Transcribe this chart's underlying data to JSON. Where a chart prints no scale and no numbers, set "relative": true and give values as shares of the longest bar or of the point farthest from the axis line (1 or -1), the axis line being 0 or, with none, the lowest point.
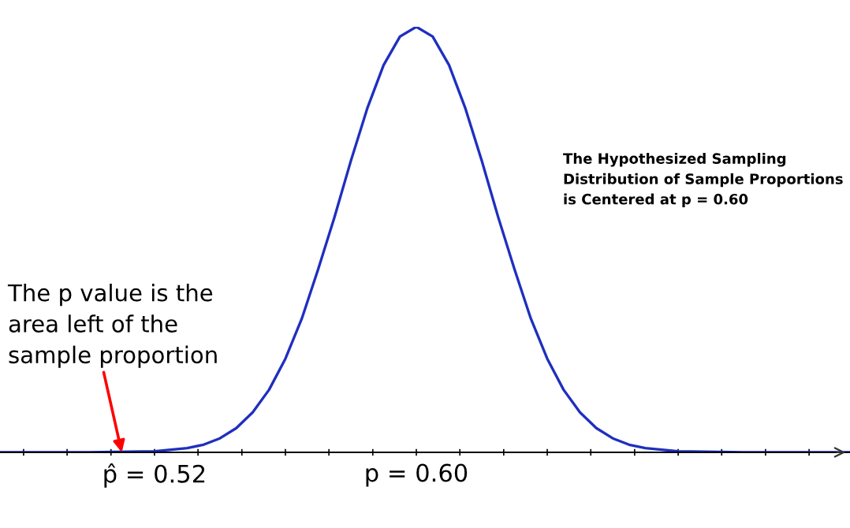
{
  "chart_data": {
    "type": "line",
    "relative": true,
    "x": [
      0.473,
      0.5,
      0.52,
      0.53,
      0.535,
      0.54,
      0.545,
      0.55,
      0.555,
      0.56,
      0.565,
      0.57,
      0.575,
      0.58,
      0.585,
      0.59,
      0.595,
      0.6,
      0.605,
      0.61,
      0.615,
      0.62,
      0.625,
      0.63,
      0.635,
      0.64,
      0.645,
      0.65,
      0.655,
      0.66,
      0.665,
      0.67,
      0.68,
      0.7,
      0.7325
    ],
    "series": [
      {
        "color": "#1f2fbf",
        "values": [
          0,
          0.0001,
          0.0024,
          0.0099,
          0.018,
          0.033,
          0.057,
          0.094,
          0.147,
          0.22,
          0.314,
          0.43,
          0.553,
          0.685,
          0.808,
          0.91,
          0.977,
          1,
          0.977,
          0.91,
          0.808,
          0.685,
          0.553,
          0.43,
          0.314,
          0.22,
          0.147,
          0.094,
          0.057,
          0.033,
          0.018,
          0.0099,
          0.0024,
          0.0001,
          0
        ]
      }
    ],
    "xlim": [
      0.4728,
      0.7325
    ],
    "xticks": [
      {
        "value": 0.48,
        "label": null
      },
      {
        "value": 0.4933,
        "label": null
      },
      {
        "value": 0.5067,
        "label": null
      },
      {
        "value": 0.52,
        "label": "p̂ = 0.52"
      },
      {
        "value": 0.5333,
        "label": null
      },
      {
        "value": 0.5467,
        "label": null
      },
      {
        "value": 0.56,
        "label": null
      },
      {
        "value": 0.5733,
        "label": null
      },
      {
        "value": 0.5867,
        "label": null
      },
      {
        "value": 0.6,
        "label": "p = 0.60"
      },
      {
        "value": 0.6133,
        "label": null
      },
      {
        "value": 0.6267,
        "label": null
      },
      {
        "value": 0.64,
        "label": null
      },
      {
        "value": 0.6533,
        "label": null
      },
      {
        "value": 0.6667,
        "label": null
      },
      {
        "value": 0.68,
        "label": null
      },
      {
        "value": 0.6933,
        "label": null
      },
      {
        "value": 0.7067,
        "label": null
      },
      {
        "value": 0.72,
        "label": null
      }
    ],
    "tick_labels": "x",
    "grid": false,
    "legend": false,
    "marker": "none",
    "line_style": "solid",
    "annotations": [
      {
        "text": "The p value is the\narea left of the\nsample proportion",
        "x": 0.51,
        "y": 0
      },
      "The Hypothesized Sampling\nDistribution of Sample Proportions\nis Centered at p = 0.60"
    ]
  }
}
